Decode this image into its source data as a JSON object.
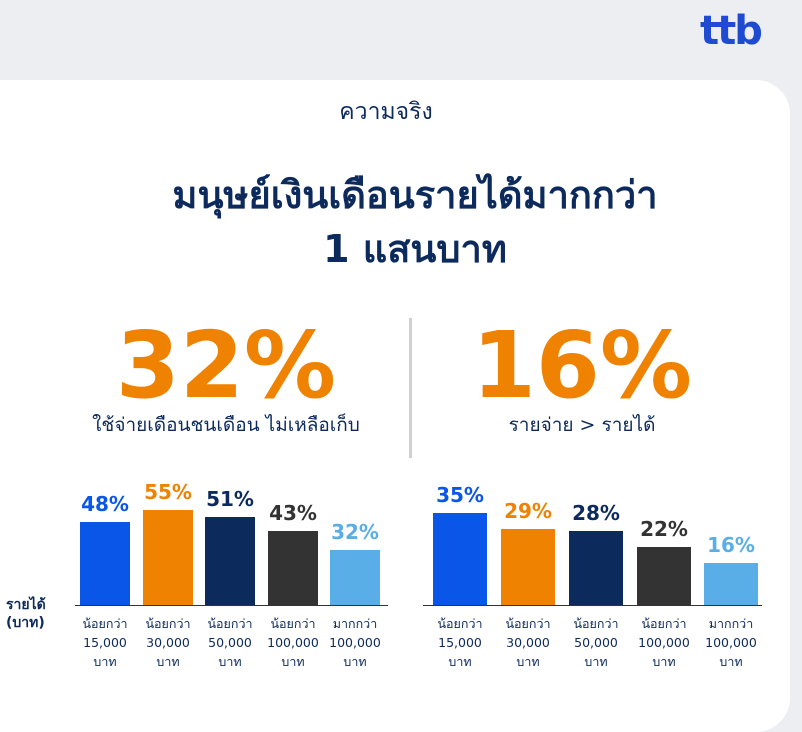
{
  "logo": "ttb",
  "label": "ความจริง",
  "title_lines": [
    "มนุษย์เงินเดือนรายได้มากกว่า",
    "1 แสนบาท"
  ],
  "stats": [
    {
      "value": "32%",
      "caption": "ใช้จ่ายเดือนชนเดือน ไม่เหลือเก็บ"
    },
    {
      "value": "16%",
      "caption": "รายจ่าย > รายได้"
    }
  ],
  "axis_label": "รายได้ (บาท)",
  "chart_data": [
    {
      "type": "bar",
      "categories": [
        "น้อยกว่า 15,000 บาท",
        "น้อยกว่า 30,000 บาท",
        "น้อยกว่า 50,000 บาท",
        "น้อยกว่า 100,000 บาท",
        "มากกว่า 100,000 บาท"
      ],
      "values": [
        48,
        55,
        51,
        43,
        32
      ],
      "value_labels": [
        "48%",
        "55%",
        "51%",
        "43%",
        "32%"
      ],
      "colors": [
        "#0a56e8",
        "#ef8200",
        "#0d2a5c",
        "#333333",
        "#5aaee8"
      ]
    },
    {
      "type": "bar",
      "categories": [
        "น้อยกว่า 15,000 บาท",
        "น้อยกว่า 30,000 บาท",
        "น้อยกว่า 50,000 บาท",
        "น้อยกว่า 100,000 บาท",
        "มากกว่า 100,000 บาท"
      ],
      "values": [
        35,
        29,
        28,
        22,
        16
      ],
      "value_labels": [
        "35%",
        "29%",
        "28%",
        "22%",
        "16%"
      ],
      "colors": [
        "#0a56e8",
        "#ef8200",
        "#0d2a5c",
        "#333333",
        "#5aaee8"
      ]
    }
  ]
}
